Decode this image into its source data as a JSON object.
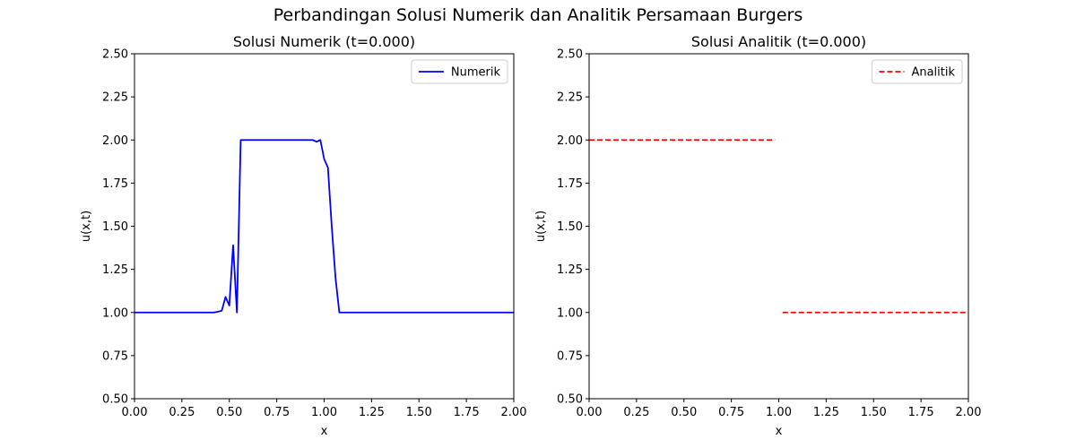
{
  "suptitle": "Perbandingan Solusi Numerik dan Analitik Persamaan Burgers",
  "chart_data": [
    {
      "type": "line",
      "title": "Solusi Numerik (t=0.000)",
      "xlabel": "x",
      "ylabel": "u(x,t)",
      "xlim": [
        0,
        2
      ],
      "ylim": [
        0.5,
        2.5
      ],
      "xticks": [
        "0.00",
        "0.25",
        "0.50",
        "0.75",
        "1.00",
        "1.25",
        "1.50",
        "1.75",
        "2.00"
      ],
      "yticks": [
        "0.50",
        "0.75",
        "1.00",
        "1.25",
        "1.50",
        "1.75",
        "2.00",
        "2.25",
        "2.50"
      ],
      "legend": "top-right",
      "grid": false,
      "series": [
        {
          "name": "Numerik",
          "color": "#0000ff",
          "style": "solid",
          "segments": [
            [
              [
                0.0,
                1.0
              ],
              [
                0.42,
                1.0
              ],
              [
                0.46,
                1.01
              ],
              [
                0.48,
                1.09
              ],
              [
                0.5,
                1.04
              ],
              [
                0.52,
                1.39
              ],
              [
                0.54,
                1.0
              ],
              [
                0.56,
                2.0
              ],
              [
                0.94,
                2.0
              ],
              [
                0.96,
                1.99
              ],
              [
                0.98,
                2.0
              ],
              [
                1.0,
                1.89
              ],
              [
                1.02,
                1.84
              ],
              [
                1.04,
                1.5
              ],
              [
                1.06,
                1.2
              ],
              [
                1.08,
                1.0
              ],
              [
                2.0,
                1.0
              ]
            ]
          ]
        }
      ]
    },
    {
      "type": "line",
      "title": "Solusi Analitik (t=0.000)",
      "xlabel": "x",
      "ylabel": "u(x,t)",
      "xlim": [
        0,
        2
      ],
      "ylim": [
        0.5,
        2.5
      ],
      "xticks": [
        "0.00",
        "0.25",
        "0.50",
        "0.75",
        "1.00",
        "1.25",
        "1.50",
        "1.75",
        "2.00"
      ],
      "yticks": [
        "0.50",
        "0.75",
        "1.00",
        "1.25",
        "1.50",
        "1.75",
        "2.00",
        "2.25",
        "2.50"
      ],
      "legend": "top-right",
      "grid": false,
      "series": [
        {
          "name": "Analitik",
          "color": "#ff0000",
          "style": "dashed",
          "segments": [
            [
              [
                0.0,
                2.0
              ],
              [
                0.98,
                2.0
              ]
            ],
            [
              [
                1.02,
                1.0
              ],
              [
                2.0,
                1.0
              ]
            ]
          ]
        }
      ]
    }
  ]
}
